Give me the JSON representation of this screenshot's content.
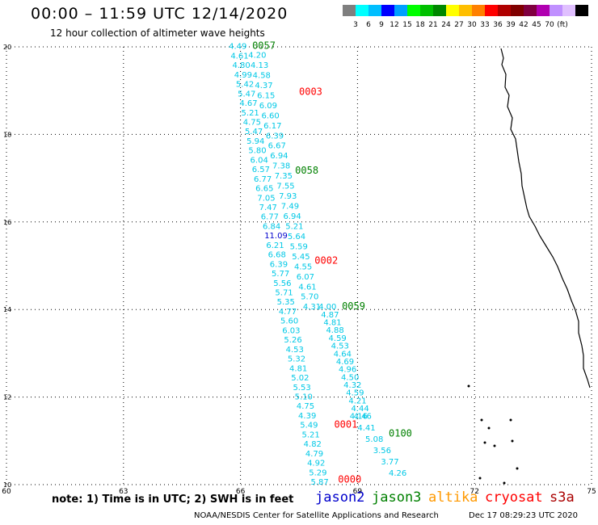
{
  "header": {
    "title": "00:00 – 11:59 UTC 12/14/2020",
    "subtitle": "12 hour collection of altimeter wave heights"
  },
  "color_scale": {
    "colors": [
      "#7f7f7f",
      "#00ffff",
      "#00bfff",
      "#0000ff",
      "#00a0ff",
      "#00ff00",
      "#00c000",
      "#008800",
      "#ffff00",
      "#ffbf00",
      "#ff8000",
      "#ff0000",
      "#b00000",
      "#800000",
      "#800040",
      "#b000b0",
      "#c090ff",
      "#e0c0ff",
      "#000000"
    ],
    "labels": [
      "3",
      "6",
      "9",
      "12",
      "15",
      "18",
      "21",
      "24",
      "27",
      "30",
      "33",
      "36",
      "39",
      "42",
      "45",
      "70",
      "(ft)"
    ]
  },
  "axes": {
    "x_ticks": [
      "60",
      "63",
      "66",
      "69",
      "72",
      "75"
    ],
    "y_ticks": [
      "10",
      "12",
      "14",
      "16",
      "18",
      "20"
    ]
  },
  "chart_data": {
    "type": "scatter",
    "x_range": [
      60,
      75
    ],
    "y_range": [
      10,
      20
    ],
    "tracks": [
      {
        "label": "0057",
        "label_color": "#008000",
        "label_pos": [
          66.3,
          19.95
        ],
        "start": [
          65.7,
          19.95
        ],
        "end": [
          67.8,
          10.0
        ],
        "values": [
          "4.49",
          "4.61",
          "4.80",
          "4.99",
          "5.42",
          "5.47",
          "4.67",
          "5.21",
          "4.75",
          "5.47",
          "5.94",
          "5.80",
          "6.04",
          "6.57",
          "6.77",
          "6.65",
          "7.05",
          "7.47",
          "6.77",
          "6.84",
          "11.09",
          "6.21",
          "6.68",
          "6.39",
          "5.77",
          "5.56",
          "5.71",
          "5.35",
          "4.77",
          "5.60",
          "6.03",
          "5.26",
          "4.53",
          "5.32",
          "4.81",
          "5.02",
          "5.53",
          "5.10",
          "4.75",
          "4.39",
          "5.49",
          "5.21",
          "4.82",
          "4.79",
          "4.92",
          "5.29",
          "5.87"
        ]
      },
      {
        "label": "0003",
        "label_color": "#ff0000",
        "label_pos": [
          67.5,
          18.9
        ],
        "start": [
          66.2,
          19.75
        ],
        "end": [
          67.6,
          14.0
        ],
        "values": [
          "4.20",
          "4.13",
          "4.58",
          "4.37",
          "6.15",
          "6.09",
          "6.60",
          "6.17",
          "6.39",
          "6.67",
          "6.94",
          "7.38",
          "7.35",
          "7.55",
          "7.93",
          "7.49",
          "6.94",
          "5.21",
          "5.64",
          "5.59",
          "5.45",
          "4.55",
          "6.07",
          "4.61",
          "5.70",
          "4.31"
        ]
      },
      {
        "label": "0058",
        "label_color": "#008000",
        "label_pos": [
          67.4,
          17.1
        ],
        "start": [
          67.0,
          17.0
        ],
        "end": [
          67.3,
          16.2
        ],
        "values": []
      },
      {
        "label": "0002",
        "label_color": "#ff0000",
        "label_pos": [
          67.9,
          15.05
        ],
        "start": [
          67.0,
          15.0
        ],
        "end": [
          67.3,
          14.2
        ],
        "values": []
      },
      {
        "label": "0059",
        "label_color": "#008000",
        "label_pos": [
          68.6,
          14.0
        ],
        "start": [
          68.0,
          14.0
        ],
        "end": [
          68.9,
          11.5
        ],
        "values": [
          "4.00",
          "4.87",
          "4.81",
          "4.88",
          "4.59",
          "4.53",
          "4.64",
          "4.69",
          "4.96",
          "4.50",
          "4.32",
          "4.59",
          "4.21",
          "4.44",
          "4.46"
        ]
      },
      {
        "label": "0001",
        "label_color": "#ff0000",
        "label_pos": [
          68.4,
          11.3
        ],
        "start": [
          68.8,
          11.5
        ],
        "end": [
          69.8,
          10.2
        ],
        "values": [
          "4.16",
          "4.41",
          "5.08",
          "3.56",
          "3.77",
          "4.26"
        ]
      },
      {
        "label": "0100",
        "label_color": "#008000",
        "label_pos": [
          69.8,
          11.1
        ],
        "start": [
          69.8,
          11.1
        ],
        "end": [
          69.8,
          11.1
        ],
        "values": []
      },
      {
        "label": "0000",
        "label_color": "#ff0000",
        "label_pos": [
          68.5,
          10.05
        ],
        "start": [
          68.5,
          10.05
        ],
        "end": [
          68.5,
          10.05
        ],
        "values": []
      }
    ]
  },
  "footer": {
    "note": "note:  1) Time is in UTC;  2) SWH is in feet",
    "satellites": [
      {
        "name": "jason2",
        "color": "#0000cc"
      },
      {
        "name": "jason3",
        "color": "#008000"
      },
      {
        "name": "altika",
        "color": "#ff9900"
      },
      {
        "name": "cryosat",
        "color": "#ff0000"
      },
      {
        "name": "s3a",
        "color": "#aa0000"
      }
    ],
    "credit": "NOAA/NESDIS Center for Satellite Applications and Research",
    "timestamp": "Dec 17 08:29:23 UTC 2020"
  }
}
